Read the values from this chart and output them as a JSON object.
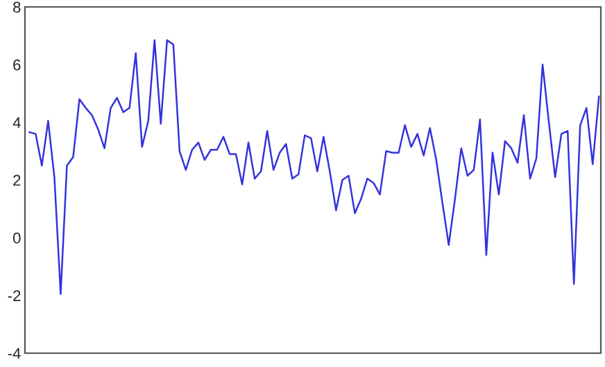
{
  "chart_data": {
    "type": "line",
    "categories": [
      null,
      null,
      null,
      null,
      null,
      null,
      null,
      null,
      null,
      null,
      null,
      null,
      null,
      null,
      null,
      null,
      null,
      null,
      null,
      null,
      null,
      null,
      null,
      null,
      null,
      null,
      null,
      null,
      null,
      null,
      null,
      null,
      null,
      null,
      null,
      null,
      null,
      null,
      null,
      null,
      null,
      null,
      null,
      null,
      null,
      null,
      null,
      null,
      null,
      null,
      null,
      null,
      null,
      null,
      null,
      null,
      null,
      null,
      null,
      null,
      null,
      null,
      null,
      null,
      null,
      null,
      null,
      null,
      null,
      null,
      null,
      null,
      null,
      null,
      null,
      null,
      null,
      null,
      null,
      null,
      null,
      null,
      null,
      null,
      null,
      null,
      null,
      null,
      null,
      null,
      null,
      null
    ],
    "series": [
      {
        "color": "#3333dd",
        "values": [
          3.66,
          3.6,
          2.5,
          4.05,
          2.1,
          -1.95,
          2.5,
          2.8,
          4.8,
          4.5,
          4.25,
          3.75,
          3.1,
          4.5,
          4.85,
          4.35,
          4.5,
          6.4,
          3.15,
          4.05,
          6.85,
          3.95,
          6.85,
          6.7,
          3.0,
          2.35,
          3.05,
          3.3,
          2.7,
          3.05,
          3.05,
          3.5,
          2.9,
          2.9,
          1.85,
          3.3,
          2.05,
          2.3,
          3.7,
          2.35,
          2.95,
          3.25,
          2.05,
          2.2,
          3.55,
          3.45,
          2.3,
          3.5,
          2.3,
          0.95,
          2.0,
          2.15,
          0.85,
          1.35,
          2.05,
          1.9,
          1.5,
          3.0,
          2.95,
          2.95,
          3.9,
          3.15,
          3.6,
          2.85,
          3.8,
          2.7,
          1.2,
          -0.25,
          1.35,
          3.1,
          2.15,
          2.35,
          4.1,
          -0.6,
          2.95,
          1.5,
          3.35,
          3.1,
          2.6,
          4.25,
          2.05,
          2.75,
          6.0,
          4.0,
          2.1,
          3.6,
          3.7,
          -1.6,
          3.9,
          4.5,
          2.55,
          4.9
        ]
      }
    ],
    "ylim": [
      -4,
      8
    ],
    "yticks": [
      -4,
      -2,
      0,
      2,
      4,
      6,
      8
    ],
    "tick_labels": "y",
    "grid": false,
    "legend": false,
    "marker": "none",
    "line_style": "solid"
  }
}
